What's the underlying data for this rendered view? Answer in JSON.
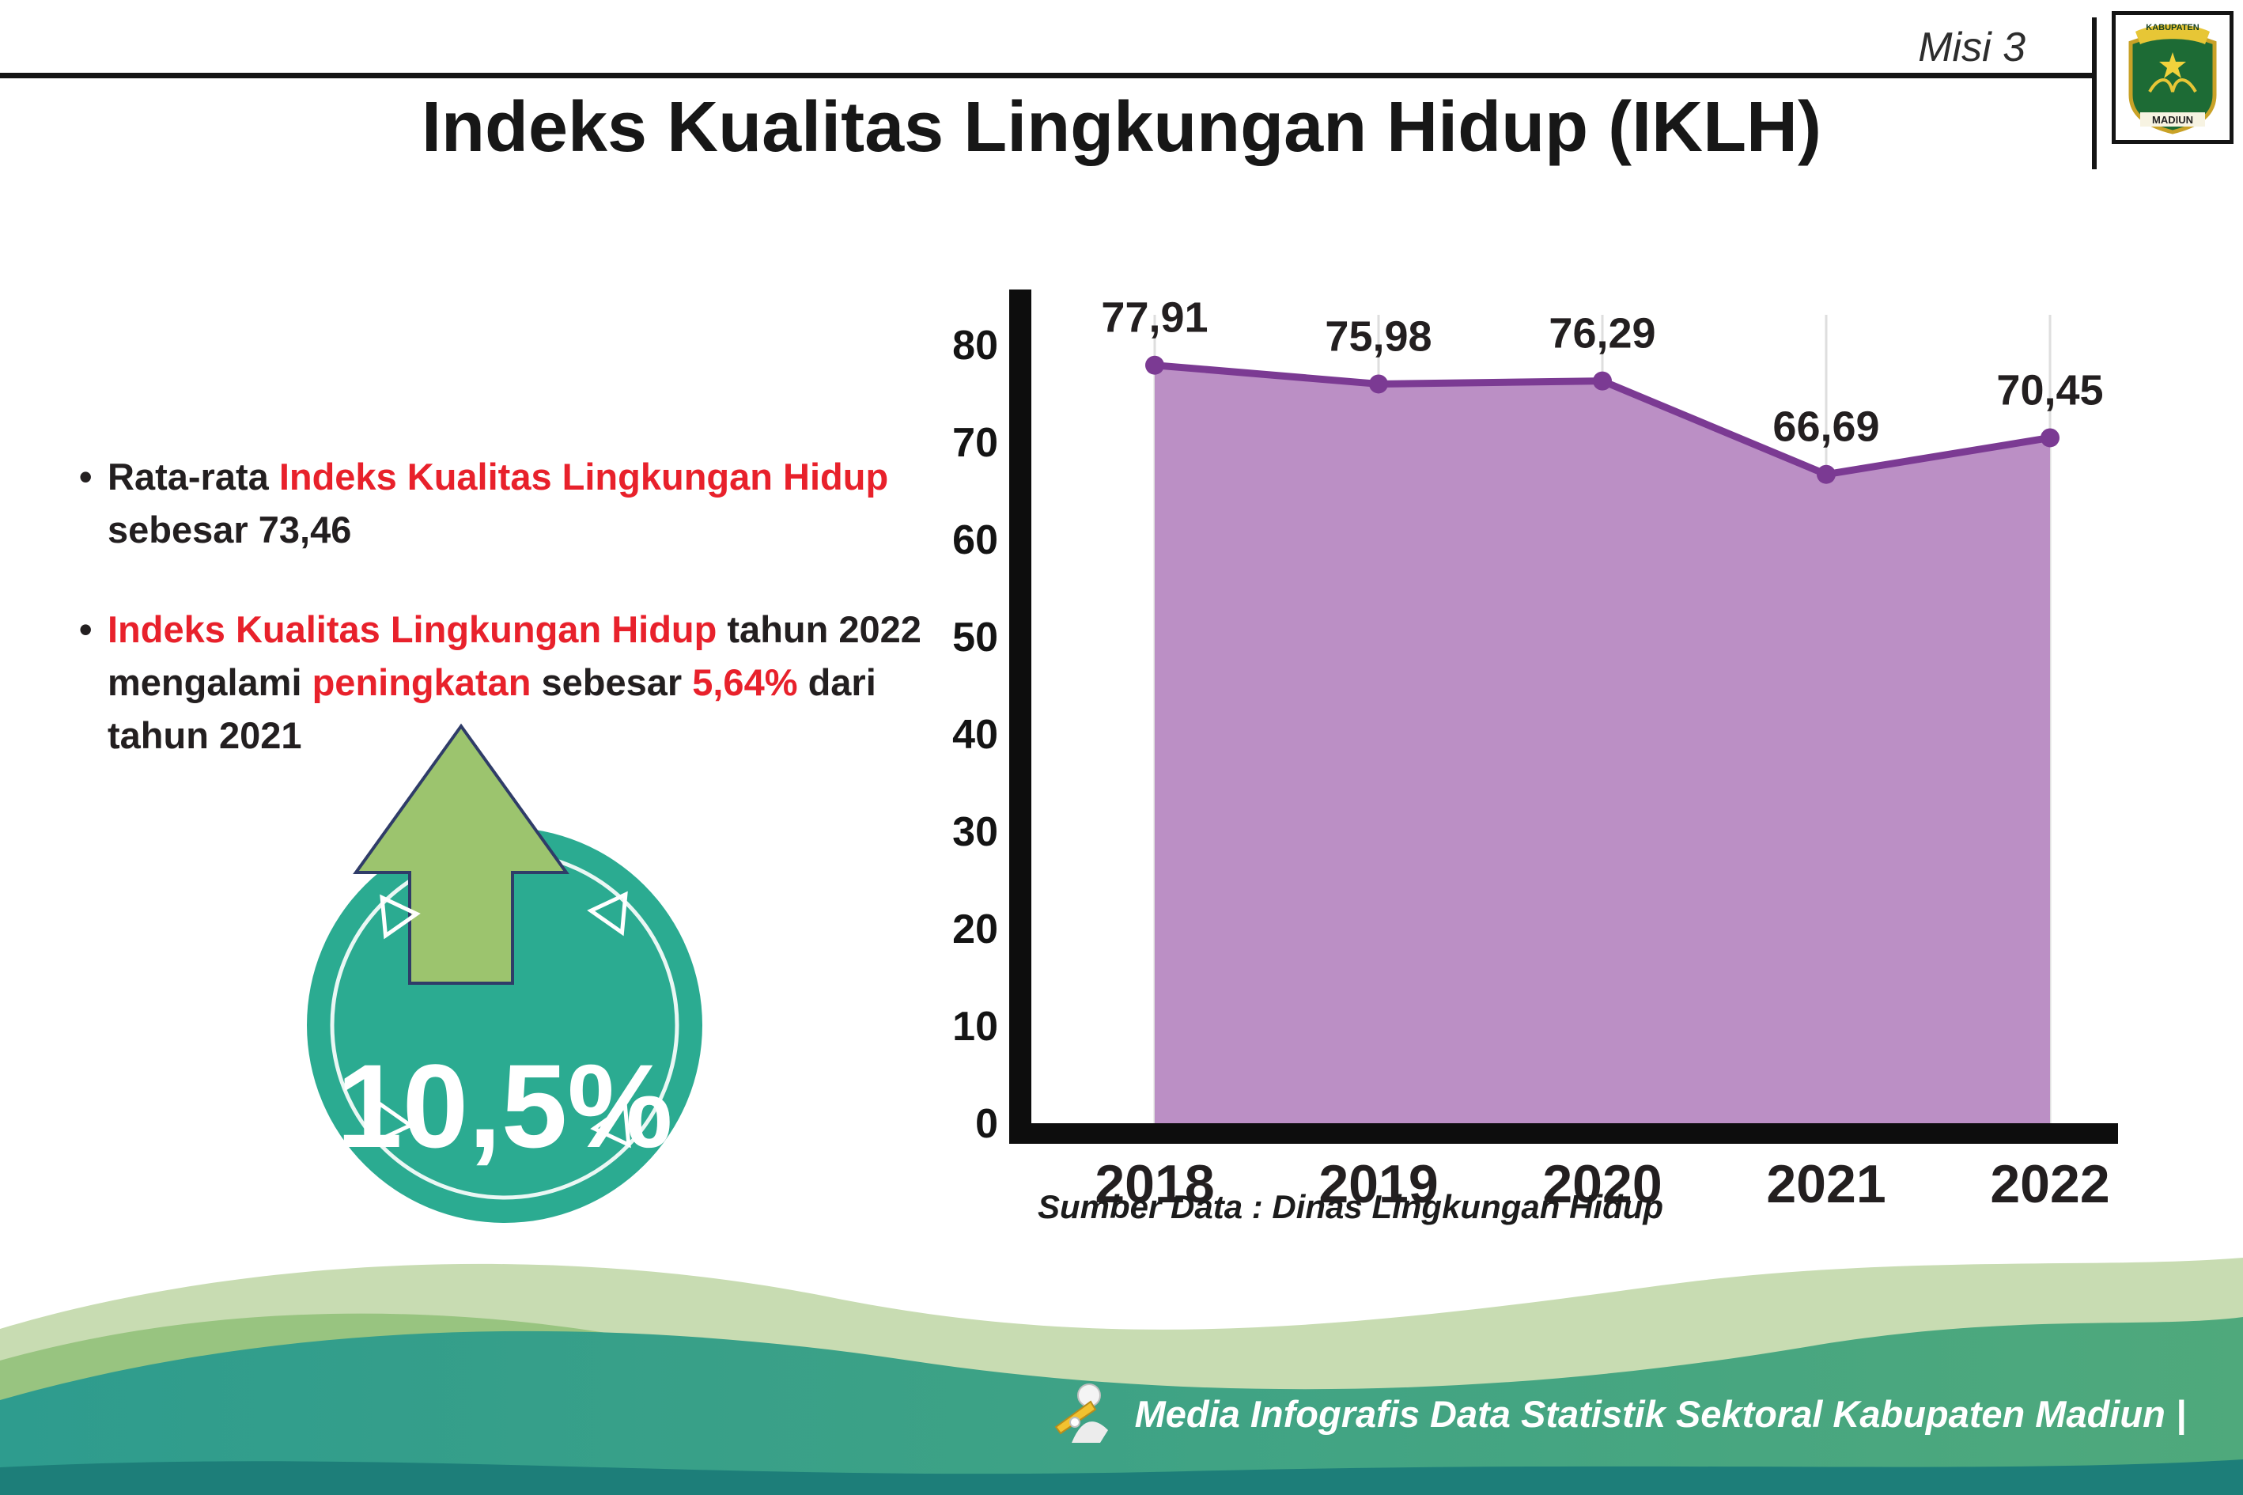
{
  "header": {
    "misi": "Misi 3",
    "title": "Indeks Kualitas Lingkungan Hidup (IKLH)",
    "logo": {
      "top": "KABUPATEN",
      "bottom": "MADIUN"
    }
  },
  "bullets": {
    "bullet_char": "•",
    "b1": {
      "s1": "Rata-rata ",
      "s2": "Indeks Kualitas Lingkungan Hidup",
      "s3": " sebesar 73,46"
    },
    "b2": {
      "s1": "Indeks Kualitas Lingkungan Hidup",
      "s2": " tahun 2022 mengalami ",
      "s3": "peningkatan",
      "s4": " sebesar ",
      "s5": "5,64%",
      "s6": " dari tahun 2021"
    }
  },
  "badge": {
    "value": "10,5%",
    "circle_color": "#2bab91",
    "arrow_color": "#9cc46e"
  },
  "chart_data": {
    "type": "area",
    "categories": [
      "2018",
      "2019",
      "2020",
      "2021",
      "2022"
    ],
    "values": [
      77.91,
      75.98,
      76.29,
      66.69,
      70.45
    ],
    "labels": [
      "77,91",
      "75,98",
      "76,29",
      "66,69",
      "70,45"
    ],
    "ylim": [
      0,
      80
    ],
    "ytick_step": 10,
    "grid": "vertical-light",
    "legend": "none",
    "area_color": "#bb8fc5",
    "line_color": "#7b3a93",
    "source": "Sumber Data : Dinas Lingkungan Hidup"
  },
  "footer": {
    "text": "Media Infografis Data Statistik Sektoral Kabupaten Madiun |"
  }
}
